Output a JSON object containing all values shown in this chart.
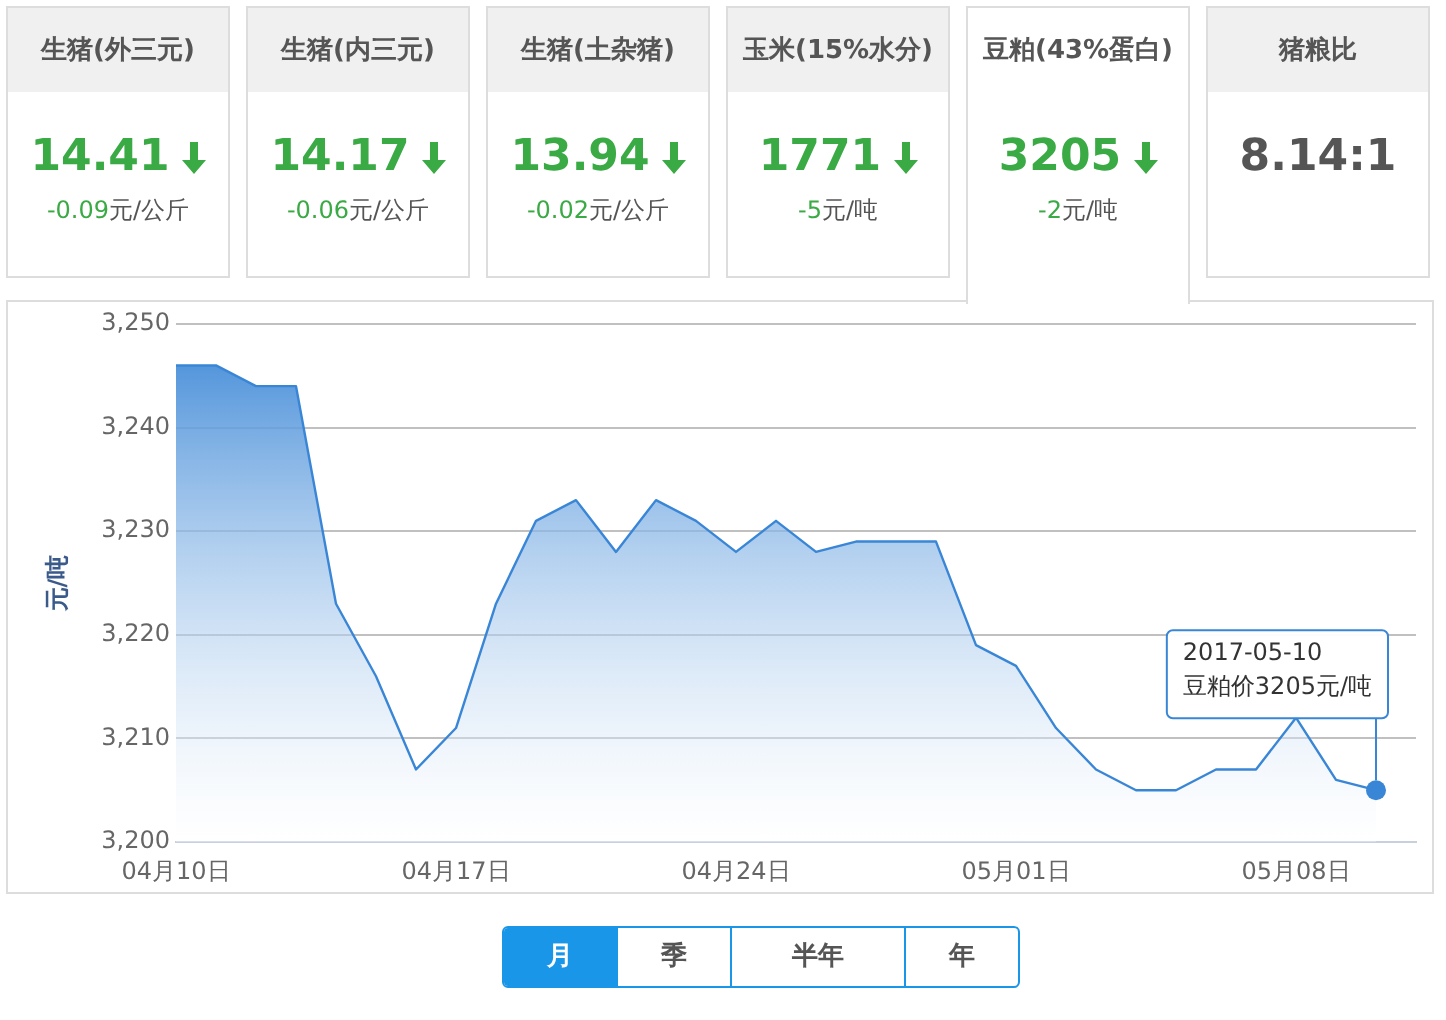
{
  "chart_data": [
    {
      "type": "other",
      "title": "生猪(外三元)",
      "annotations": [
        "14.41",
        "-0.09元/公斤"
      ]
    },
    {
      "type": "other",
      "title": "生猪(内三元)",
      "annotations": [
        "14.17",
        "-0.06元/公斤"
      ]
    },
    {
      "type": "other",
      "title": "生猪(土杂猪)",
      "annotations": [
        "13.94",
        "-0.02元/公斤"
      ]
    },
    {
      "type": "other",
      "title": "玉米(15%水分)",
      "annotations": [
        "1771",
        "-5元/吨"
      ]
    },
    {
      "type": "other",
      "title": "豆粕(43%蛋白)",
      "annotations": [
        "3205",
        "-2元/吨"
      ]
    },
    {
      "type": "other",
      "title": "猪粮比",
      "annotations": [
        "8.14:1"
      ]
    },
    {
      "type": "area",
      "ylabel": "元/吨",
      "x": [
        "2017-04-10",
        "2017-04-11",
        "2017-04-12",
        "2017-04-13",
        "2017-04-14",
        "2017-04-15",
        "2017-04-16",
        "2017-04-17",
        "2017-04-18",
        "2017-04-19",
        "2017-04-20",
        "2017-04-21",
        "2017-04-22",
        "2017-04-23",
        "2017-04-24",
        "2017-04-25",
        "2017-04-26",
        "2017-04-27",
        "2017-04-28",
        "2017-04-29",
        "2017-04-30",
        "2017-05-01",
        "2017-05-02",
        "2017-05-03",
        "2017-05-04",
        "2017-05-05",
        "2017-05-06",
        "2017-05-07",
        "2017-05-08",
        "2017-05-09",
        "2017-05-10"
      ],
      "values": [
        3246,
        3246,
        3244,
        3244,
        3223,
        3216,
        3207,
        3211,
        3223,
        3231,
        3233,
        3228,
        3233,
        3231,
        3228,
        3231,
        3228,
        3229,
        3229,
        3229,
        3219,
        3217,
        3211,
        3207,
        3205,
        3205,
        3207,
        3207,
        3212,
        3206,
        3205
      ],
      "color": "#3a86d6",
      "xlim": [
        "2017-04-10",
        "2017-05-11"
      ],
      "xticks": [
        {
          "value": "2017-04-10",
          "label": "04月10日"
        },
        {
          "value": "2017-04-17",
          "label": "04月17日"
        },
        {
          "value": "2017-04-24",
          "label": "04月24日"
        },
        {
          "value": "2017-05-01",
          "label": "05月01日"
        },
        {
          "value": "2017-05-08",
          "label": "05月08日"
        }
      ],
      "ylim": [
        3200,
        3250
      ],
      "yticks": [
        {
          "value": 3200,
          "label": "3,200"
        },
        {
          "value": 3210,
          "label": "3,210"
        },
        {
          "value": 3220,
          "label": "3,220"
        },
        {
          "value": 3230,
          "label": "3,230"
        },
        {
          "value": 3240,
          "label": "3,240"
        },
        {
          "value": 3250,
          "label": "3,250"
        }
      ],
      "grid": "y",
      "marker": "none",
      "legend": false,
      "annotations": [
        {
          "text": "2017-05-10\n豆粕价3205元/吨",
          "x": "2017-05-10",
          "y": 3205
        },
        "月",
        "季",
        "半年",
        "年"
      ]
    }
  ]
}
